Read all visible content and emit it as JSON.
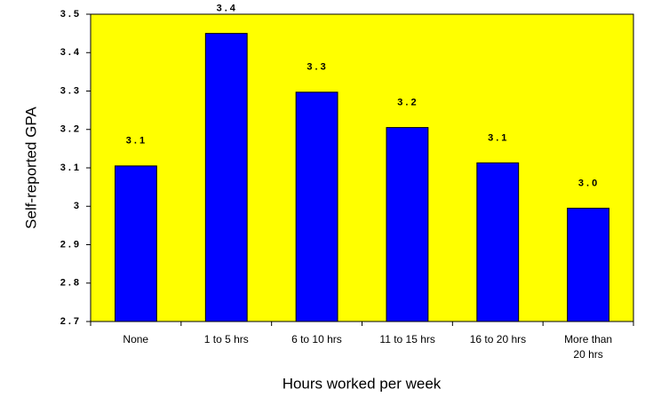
{
  "chart_data": {
    "type": "bar",
    "xlabel": "Hours worked per week",
    "ylabel": "Self-reported GPA",
    "categories": [
      "None",
      "1 to 5 hrs",
      "6 to 10 hrs",
      "11 to 15 hrs",
      "16 to 20 hrs",
      "More than 20 hrs"
    ],
    "values": [
      3.105,
      3.45,
      3.297,
      3.205,
      3.113,
      2.995
    ],
    "value_labels": [
      "3.1",
      "3.4",
      "3.3",
      "3.2",
      "3.1",
      "3.0"
    ],
    "color": "#0000ff",
    "background": "#ffff00",
    "ylim": [
      2.7,
      3.5
    ],
    "yticks": [
      2.7,
      2.8,
      2.9,
      3,
      3.1,
      3.2,
      3.3,
      3.4,
      3.5
    ],
    "grid": false
  }
}
